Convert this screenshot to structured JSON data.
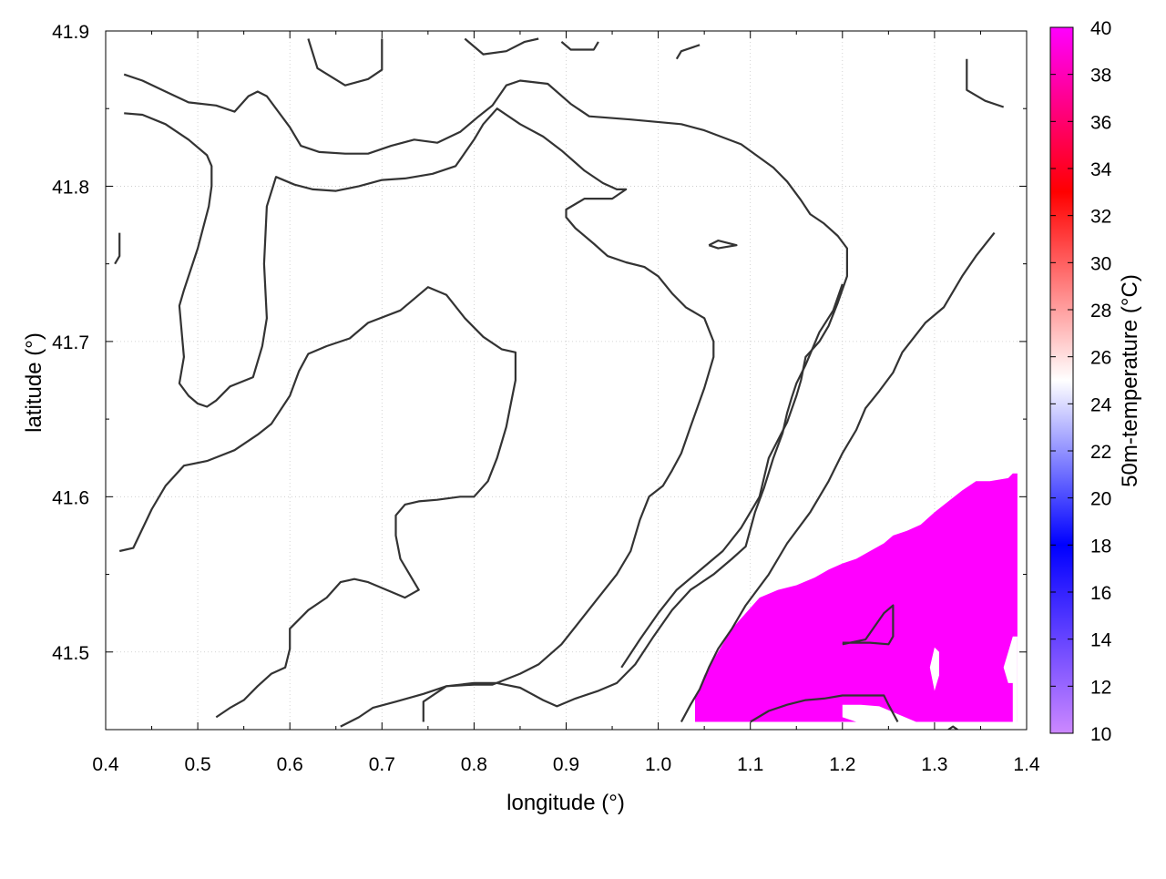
{
  "chart_data": {
    "type": "heatmap",
    "title": "",
    "xlabel": "longitude (°)",
    "ylabel": "latitude (°)",
    "colorbar_label": "50m-temperature (°C)",
    "xlim": [
      0.4,
      1.4
    ],
    "ylim": [
      41.45,
      41.9
    ],
    "x_ticks": [
      "0.4",
      "0.5",
      "0.6",
      "0.7",
      "0.8",
      "0.9",
      "1.0",
      "1.1",
      "1.2",
      "1.3",
      "1.4"
    ],
    "y_ticks": [
      "41.5",
      "41.6",
      "41.7",
      "41.8",
      "41.9"
    ],
    "colorbar_range": [
      10,
      40
    ],
    "colorbar_ticks": [
      "10",
      "12",
      "14",
      "16",
      "18",
      "20",
      "22",
      "24",
      "26",
      "28",
      "30",
      "32",
      "34",
      "36",
      "38",
      "40"
    ],
    "colorbar_stops": [
      {
        "value": 10,
        "color": "#cc88ff"
      },
      {
        "value": 18,
        "color": "#0000ff"
      },
      {
        "value": 25,
        "color": "#ffffff"
      },
      {
        "value": 33,
        "color": "#ff0000"
      },
      {
        "value": 40,
        "color": "#ff00ff"
      }
    ],
    "grid": true,
    "contour_color": "#333333",
    "contours": [
      [
        [
          0.42,
          41.872
        ],
        [
          0.44,
          41.868
        ],
        [
          0.465,
          41.861
        ],
        [
          0.49,
          41.854
        ],
        [
          0.52,
          41.852
        ],
        [
          0.54,
          41.848
        ],
        [
          0.555,
          41.858
        ],
        [
          0.565,
          41.861
        ],
        [
          0.575,
          41.858
        ],
        [
          0.6,
          41.838
        ],
        [
          0.612,
          41.826
        ],
        [
          0.632,
          41.822
        ],
        [
          0.66,
          41.821
        ],
        [
          0.685,
          41.821
        ],
        [
          0.71,
          41.826
        ],
        [
          0.735,
          41.83
        ],
        [
          0.76,
          41.828
        ],
        [
          0.785,
          41.835
        ],
        [
          0.805,
          41.845
        ],
        [
          0.82,
          41.852
        ],
        [
          0.835,
          41.865
        ],
        [
          0.85,
          41.868
        ],
        [
          0.88,
          41.866
        ],
        [
          0.905,
          41.853
        ],
        [
          0.925,
          41.845
        ],
        [
          0.97,
          41.843
        ],
        [
          1.025,
          41.84
        ],
        [
          1.05,
          41.836
        ],
        [
          1.09,
          41.827
        ],
        [
          1.125,
          41.812
        ],
        [
          1.14,
          41.803
        ],
        [
          1.155,
          41.791
        ],
        [
          1.165,
          41.782
        ],
        [
          1.18,
          41.776
        ],
        [
          1.195,
          41.768
        ],
        [
          1.205,
          41.76
        ],
        [
          1.205,
          41.742
        ],
        [
          1.195,
          41.725
        ],
        [
          1.185,
          41.71
        ],
        [
          1.175,
          41.7
        ],
        [
          1.16,
          41.69
        ],
        [
          1.155,
          41.675
        ],
        [
          1.15,
          41.665
        ],
        [
          1.14,
          41.648
        ],
        [
          1.12,
          41.625
        ],
        [
          1.11,
          41.6
        ],
        [
          1.09,
          41.58
        ],
        [
          1.07,
          41.565
        ],
        [
          1.05,
          41.555
        ],
        [
          1.02,
          41.54
        ],
        [
          1.0,
          41.525
        ],
        [
          0.98,
          41.508
        ],
        [
          0.96,
          41.49
        ]
      ],
      [
        [
          0.42,
          41.847
        ],
        [
          0.44,
          41.846
        ],
        [
          0.465,
          41.84
        ],
        [
          0.49,
          41.83
        ],
        [
          0.51,
          41.82
        ],
        [
          0.515,
          41.813
        ],
        [
          0.515,
          41.8
        ],
        [
          0.512,
          41.787
        ],
        [
          0.5,
          41.76
        ],
        [
          0.485,
          41.733
        ],
        [
          0.48,
          41.723
        ],
        [
          0.485,
          41.69
        ],
        [
          0.48,
          41.673
        ],
        [
          0.49,
          41.665
        ],
        [
          0.5,
          41.66
        ],
        [
          0.51,
          41.658
        ],
        [
          0.52,
          41.662
        ],
        [
          0.535,
          41.671
        ],
        [
          0.56,
          41.677
        ],
        [
          0.57,
          41.697
        ],
        [
          0.575,
          41.715
        ],
        [
          0.572,
          41.75
        ],
        [
          0.575,
          41.787
        ],
        [
          0.585,
          41.806
        ],
        [
          0.605,
          41.801
        ],
        [
          0.625,
          41.798
        ],
        [
          0.65,
          41.797
        ],
        [
          0.675,
          41.8
        ],
        [
          0.7,
          41.804
        ],
        [
          0.725,
          41.805
        ],
        [
          0.755,
          41.808
        ],
        [
          0.78,
          41.813
        ],
        [
          0.8,
          41.83
        ],
        [
          0.81,
          41.84
        ],
        [
          0.825,
          41.85
        ],
        [
          0.85,
          41.84
        ],
        [
          0.875,
          41.832
        ],
        [
          0.895,
          41.823
        ],
        [
          0.92,
          41.81
        ],
        [
          0.94,
          41.802
        ],
        [
          0.955,
          41.798
        ],
        [
          0.965,
          41.798
        ],
        [
          0.95,
          41.792
        ],
        [
          0.92,
          41.792
        ],
        [
          0.9,
          41.785
        ],
        [
          0.9,
          41.78
        ],
        [
          0.91,
          41.773
        ],
        [
          0.93,
          41.763
        ],
        [
          0.945,
          41.755
        ],
        [
          0.965,
          41.751
        ],
        [
          0.985,
          41.748
        ],
        [
          1.0,
          41.742
        ],
        [
          1.015,
          41.731
        ],
        [
          1.03,
          41.722
        ],
        [
          1.05,
          41.715
        ],
        [
          1.06,
          41.7
        ],
        [
          1.06,
          41.69
        ],
        [
          1.05,
          41.67
        ],
        [
          1.035,
          41.645
        ],
        [
          1.025,
          41.628
        ],
        [
          1.015,
          41.617
        ],
        [
          1.005,
          41.607
        ],
        [
          0.99,
          41.6
        ],
        [
          0.98,
          41.585
        ],
        [
          0.97,
          41.565
        ],
        [
          0.955,
          41.55
        ],
        [
          0.935,
          41.535
        ],
        [
          0.915,
          41.52
        ],
        [
          0.895,
          41.505
        ],
        [
          0.87,
          41.492
        ],
        [
          0.85,
          41.486
        ],
        [
          0.82,
          41.479
        ],
        [
          0.8,
          41.479
        ],
        [
          0.77,
          41.478
        ],
        [
          0.745,
          41.473
        ],
        [
          0.715,
          41.468
        ],
        [
          0.69,
          41.464
        ],
        [
          0.675,
          41.458
        ],
        [
          0.655,
          41.452
        ]
      ],
      [
        [
          0.415,
          41.565
        ],
        [
          0.43,
          41.567
        ],
        [
          0.45,
          41.592
        ],
        [
          0.465,
          41.607
        ],
        [
          0.485,
          41.62
        ],
        [
          0.51,
          41.623
        ],
        [
          0.54,
          41.63
        ],
        [
          0.565,
          41.64
        ],
        [
          0.58,
          41.647
        ],
        [
          0.6,
          41.665
        ],
        [
          0.61,
          41.681
        ],
        [
          0.62,
          41.692
        ],
        [
          0.64,
          41.697
        ],
        [
          0.665,
          41.702
        ],
        [
          0.685,
          41.712
        ],
        [
          0.72,
          41.72
        ],
        [
          0.74,
          41.73
        ],
        [
          0.75,
          41.735
        ],
        [
          0.77,
          41.73
        ],
        [
          0.79,
          41.715
        ],
        [
          0.81,
          41.703
        ],
        [
          0.83,
          41.695
        ],
        [
          0.845,
          41.693
        ],
        [
          0.845,
          41.675
        ],
        [
          0.84,
          41.66
        ],
        [
          0.835,
          41.645
        ],
        [
          0.825,
          41.625
        ],
        [
          0.815,
          41.61
        ],
        [
          0.8,
          41.6
        ],
        [
          0.785,
          41.6
        ],
        [
          0.76,
          41.598
        ],
        [
          0.74,
          41.597
        ],
        [
          0.725,
          41.595
        ],
        [
          0.715,
          41.588
        ],
        [
          0.715,
          41.575
        ],
        [
          0.72,
          41.56
        ],
        [
          0.74,
          41.54
        ],
        [
          0.725,
          41.535
        ],
        [
          0.705,
          41.54
        ],
        [
          0.685,
          41.545
        ],
        [
          0.67,
          41.547
        ],
        [
          0.655,
          41.545
        ],
        [
          0.64,
          41.535
        ],
        [
          0.62,
          41.527
        ],
        [
          0.6,
          41.515
        ],
        [
          0.6,
          41.502
        ],
        [
          0.595,
          41.49
        ],
        [
          0.58,
          41.486
        ],
        [
          0.565,
          41.478
        ],
        [
          0.55,
          41.469
        ],
        [
          0.535,
          41.464
        ],
        [
          0.52,
          41.458
        ]
      ],
      [
        [
          0.745,
          41.455
        ],
        [
          0.745,
          41.468
        ],
        [
          0.77,
          41.478
        ],
        [
          0.8,
          41.48
        ],
        [
          0.825,
          41.48
        ],
        [
          0.85,
          41.477
        ],
        [
          0.875,
          41.469
        ],
        [
          0.89,
          41.465
        ],
        [
          0.91,
          41.47
        ],
        [
          0.935,
          41.475
        ],
        [
          0.955,
          41.48
        ],
        [
          0.975,
          41.492
        ],
        [
          0.995,
          41.51
        ],
        [
          1.015,
          41.527
        ],
        [
          1.035,
          41.54
        ],
        [
          1.06,
          41.55
        ],
        [
          1.08,
          41.56
        ],
        [
          1.095,
          41.568
        ],
        [
          1.105,
          41.59
        ],
        [
          1.115,
          41.606
        ],
        [
          1.125,
          41.625
        ],
        [
          1.135,
          41.641
        ],
        [
          1.14,
          41.654
        ],
        [
          1.145,
          41.664
        ],
        [
          1.15,
          41.673
        ],
        [
          1.16,
          41.685
        ],
        [
          1.17,
          41.699
        ],
        [
          1.175,
          41.706
        ],
        [
          1.19,
          41.72
        ],
        [
          1.2,
          41.737
        ]
      ],
      [
        [
          1.1,
          41.455
        ],
        [
          1.12,
          41.462
        ],
        [
          1.14,
          41.466
        ],
        [
          1.16,
          41.469
        ],
        [
          1.18,
          41.47
        ],
        [
          1.2,
          41.472
        ],
        [
          1.225,
          41.472
        ],
        [
          1.245,
          41.472
        ],
        [
          1.25,
          41.466
        ],
        [
          1.26,
          41.455
        ]
      ],
      [
        [
          1.025,
          41.455
        ],
        [
          1.035,
          41.466
        ],
        [
          1.045,
          41.476
        ],
        [
          1.055,
          41.49
        ],
        [
          1.065,
          41.502
        ],
        [
          1.08,
          41.515
        ],
        [
          1.095,
          41.53
        ],
        [
          1.12,
          41.55
        ],
        [
          1.14,
          41.57
        ],
        [
          1.165,
          41.59
        ],
        [
          1.185,
          41.61
        ],
        [
          1.2,
          41.628
        ],
        [
          1.215,
          41.643
        ],
        [
          1.225,
          41.657
        ],
        [
          1.24,
          41.668
        ],
        [
          1.255,
          41.68
        ],
        [
          1.265,
          41.693
        ],
        [
          1.29,
          41.712
        ],
        [
          1.31,
          41.722
        ],
        [
          1.33,
          41.742
        ],
        [
          1.345,
          41.755
        ],
        [
          1.365,
          41.77
        ]
      ],
      [
        [
          0.62,
          41.895
        ],
        [
          0.63,
          41.876
        ],
        [
          0.66,
          41.865
        ],
        [
          0.685,
          41.869
        ],
        [
          0.7,
          41.875
        ],
        [
          0.7,
          41.895
        ]
      ],
      [
        [
          0.79,
          41.895
        ],
        [
          0.81,
          41.885
        ],
        [
          0.835,
          41.887
        ],
        [
          0.855,
          41.893
        ],
        [
          0.87,
          41.895
        ]
      ],
      [
        [
          0.895,
          41.893
        ],
        [
          0.905,
          41.888
        ],
        [
          0.93,
          41.888
        ],
        [
          0.935,
          41.893
        ]
      ],
      [
        [
          1.02,
          41.882
        ],
        [
          1.025,
          41.887
        ],
        [
          1.045,
          41.891
        ]
      ],
      [
        [
          1.335,
          41.882
        ],
        [
          1.335,
          41.862
        ],
        [
          1.355,
          41.855
        ],
        [
          1.375,
          41.851
        ]
      ],
      [
        [
          0.415,
          41.77
        ],
        [
          0.415,
          41.755
        ],
        [
          0.41,
          41.75
        ]
      ],
      [
        [
          1.055,
          41.762
        ],
        [
          1.065,
          41.765
        ],
        [
          1.085,
          41.762
        ],
        [
          1.065,
          41.76
        ],
        [
          1.055,
          41.762
        ]
      ],
      [
        [
          1.2,
          41.505
        ],
        [
          1.225,
          41.508
        ],
        [
          1.245,
          41.525
        ],
        [
          1.255,
          41.53
        ],
        [
          1.255,
          41.51
        ],
        [
          1.25,
          41.505
        ],
        [
          1.23,
          41.506
        ],
        [
          1.2,
          41.506
        ]
      ],
      [
        [
          1.315,
          41.45
        ],
        [
          1.32,
          41.452
        ],
        [
          1.325,
          41.45
        ]
      ]
    ],
    "hot_region_value": 40,
    "hot_region_shape": [
      [
        1.04,
        41.455
      ],
      [
        1.04,
        41.47
      ],
      [
        1.05,
        41.485
      ],
      [
        1.06,
        41.495
      ],
      [
        1.07,
        41.505
      ],
      [
        1.08,
        41.515
      ],
      [
        1.095,
        41.525
      ],
      [
        1.11,
        41.535
      ],
      [
        1.13,
        41.54
      ],
      [
        1.15,
        41.543
      ],
      [
        1.17,
        41.548
      ],
      [
        1.185,
        41.553
      ],
      [
        1.2,
        41.557
      ],
      [
        1.215,
        41.56
      ],
      [
        1.23,
        41.565
      ],
      [
        1.245,
        41.57
      ],
      [
        1.255,
        41.575
      ],
      [
        1.27,
        41.578
      ],
      [
        1.285,
        41.582
      ],
      [
        1.3,
        41.59
      ],
      [
        1.315,
        41.597
      ],
      [
        1.33,
        41.604
      ],
      [
        1.345,
        41.61
      ],
      [
        1.36,
        41.61
      ],
      [
        1.38,
        41.612
      ],
      [
        1.385,
        41.615
      ],
      [
        1.39,
        41.615
      ],
      [
        1.39,
        41.455
      ]
    ],
    "hot_region_holes": [
      [
        [
          1.39,
          41.455
        ],
        [
          1.385,
          41.455
        ],
        [
          1.385,
          41.48
        ],
        [
          1.38,
          41.48
        ],
        [
          1.375,
          41.49
        ],
        [
          1.38,
          41.5
        ],
        [
          1.385,
          41.51
        ],
        [
          1.39,
          41.51
        ]
      ],
      [
        [
          1.3,
          41.455
        ],
        [
          1.28,
          41.455
        ],
        [
          1.26,
          41.46
        ],
        [
          1.24,
          41.465
        ],
        [
          1.22,
          41.466
        ],
        [
          1.2,
          41.466
        ],
        [
          1.2,
          41.458
        ],
        [
          1.215,
          41.455
        ]
      ],
      [
        [
          1.3,
          41.475
        ],
        [
          1.305,
          41.485
        ],
        [
          1.305,
          41.5
        ],
        [
          1.3,
          41.503
        ],
        [
          1.295,
          41.49
        ]
      ]
    ]
  }
}
